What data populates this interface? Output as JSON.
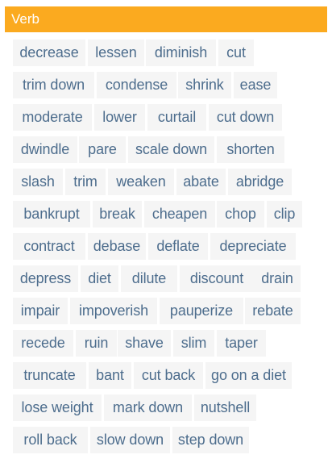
{
  "section": {
    "title": "Verb"
  },
  "words": [
    "decrease",
    "lessen",
    "diminish",
    "cut",
    "trim down",
    "condense",
    "shrink",
    "ease",
    "moderate",
    "lower",
    "curtail",
    "cut down",
    "dwindle",
    "pare",
    "scale down",
    "shorten",
    "slash",
    "trim",
    "weaken",
    "abate",
    "abridge",
    "bankrupt",
    "break",
    "cheapen",
    "chop",
    "clip",
    "contract",
    "debase",
    "deflate",
    "depreciate",
    "depress",
    "diet",
    "dilute",
    "discount",
    "drain",
    "impair",
    "impoverish",
    "pauperize",
    "rebate",
    "recede",
    "ruin",
    "shave",
    "slim",
    "taper",
    "truncate",
    "bant",
    "cut back",
    "go on a diet",
    "lose weight",
    "mark down",
    "nutshell",
    "roll back",
    "slow down",
    "step down"
  ]
}
